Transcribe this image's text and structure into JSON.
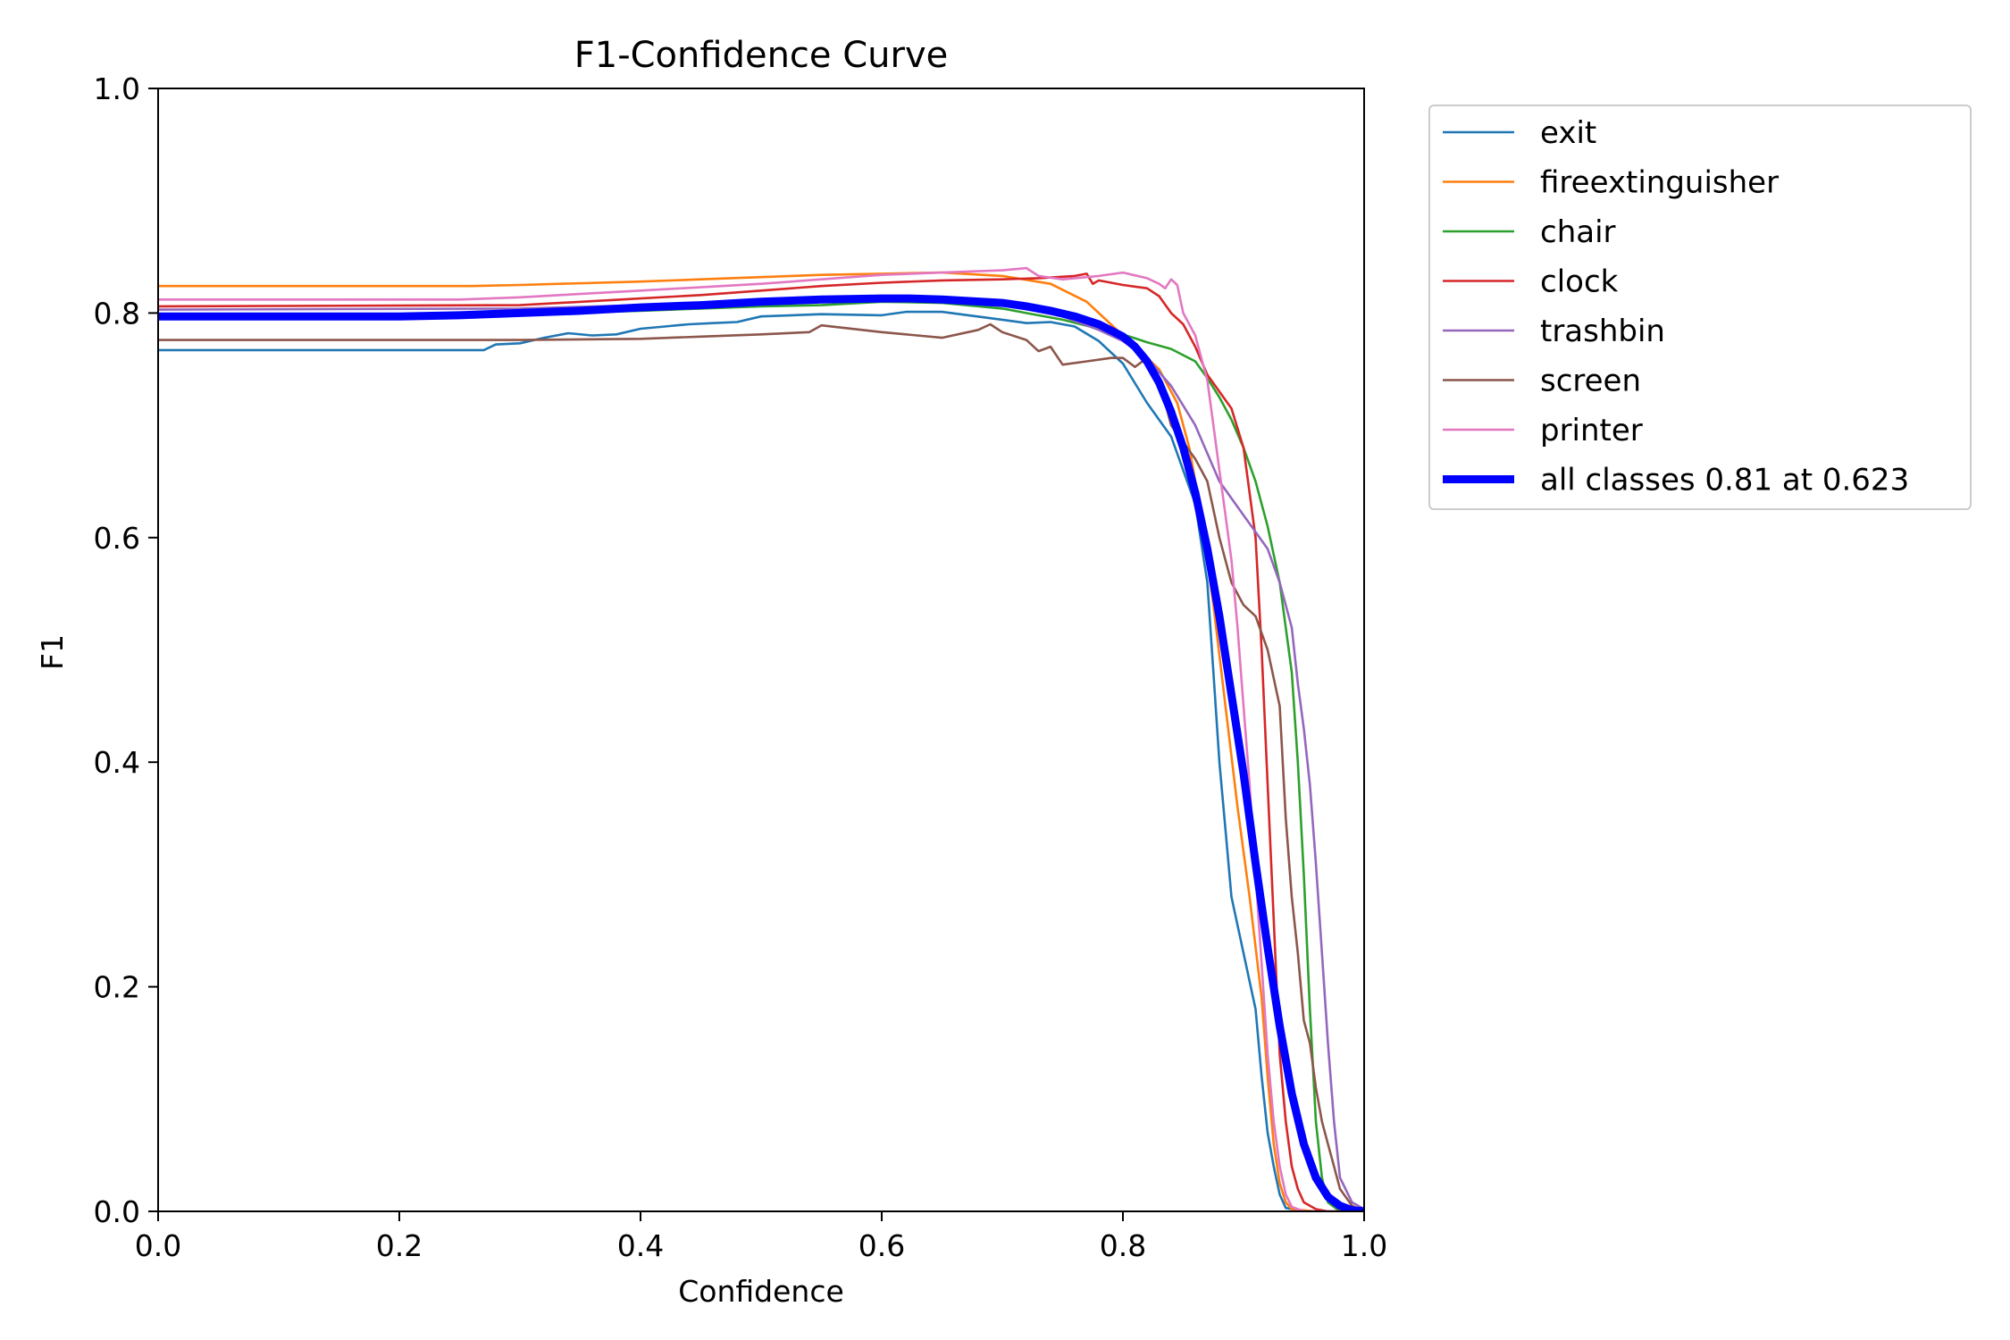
{
  "chart_data": {
    "type": "line",
    "title": "F1-Confidence Curve",
    "xlabel": "Confidence",
    "ylabel": "F1",
    "xlim": [
      0,
      1
    ],
    "ylim": [
      0,
      1
    ],
    "xticks": [
      "0.0",
      "0.2",
      "0.4",
      "0.6",
      "0.8",
      "1.0"
    ],
    "yticks": [
      "0.0",
      "0.2",
      "0.4",
      "0.6",
      "0.8",
      "1.0"
    ],
    "grid": false,
    "legend_position": "outside-top-right",
    "series": [
      {
        "name": "exit",
        "color": "#1f77b4",
        "width": "thin",
        "points": [
          [
            0,
            0.767
          ],
          [
            0.27,
            0.767
          ],
          [
            0.28,
            0.772
          ],
          [
            0.3,
            0.773
          ],
          [
            0.32,
            0.778
          ],
          [
            0.34,
            0.782
          ],
          [
            0.36,
            0.78
          ],
          [
            0.38,
            0.781
          ],
          [
            0.4,
            0.786
          ],
          [
            0.42,
            0.788
          ],
          [
            0.44,
            0.79
          ],
          [
            0.46,
            0.791
          ],
          [
            0.48,
            0.792
          ],
          [
            0.5,
            0.797
          ],
          [
            0.55,
            0.799
          ],
          [
            0.6,
            0.798
          ],
          [
            0.62,
            0.801
          ],
          [
            0.65,
            0.801
          ],
          [
            0.7,
            0.794
          ],
          [
            0.72,
            0.791
          ],
          [
            0.74,
            0.792
          ],
          [
            0.76,
            0.788
          ],
          [
            0.78,
            0.775
          ],
          [
            0.8,
            0.755
          ],
          [
            0.82,
            0.72
          ],
          [
            0.84,
            0.69
          ],
          [
            0.85,
            0.66
          ],
          [
            0.86,
            0.63
          ],
          [
            0.87,
            0.56
          ],
          [
            0.875,
            0.48
          ],
          [
            0.88,
            0.4
          ],
          [
            0.885,
            0.34
          ],
          [
            0.89,
            0.28
          ],
          [
            0.9,
            0.23
          ],
          [
            0.91,
            0.18
          ],
          [
            0.915,
            0.12
          ],
          [
            0.92,
            0.07
          ],
          [
            0.925,
            0.04
          ],
          [
            0.93,
            0.015
          ],
          [
            0.935,
            0.003
          ],
          [
            0.95,
            0
          ],
          [
            1.0,
            0
          ]
        ]
      },
      {
        "name": "fireextinguisher",
        "color": "#ff7f0e",
        "width": "thin",
        "points": [
          [
            0,
            0.824
          ],
          [
            0.26,
            0.824
          ],
          [
            0.3,
            0.825
          ],
          [
            0.4,
            0.828
          ],
          [
            0.45,
            0.83
          ],
          [
            0.5,
            0.832
          ],
          [
            0.55,
            0.834
          ],
          [
            0.6,
            0.835
          ],
          [
            0.65,
            0.836
          ],
          [
            0.7,
            0.833
          ],
          [
            0.74,
            0.826
          ],
          [
            0.77,
            0.81
          ],
          [
            0.79,
            0.79
          ],
          [
            0.81,
            0.77
          ],
          [
            0.83,
            0.75
          ],
          [
            0.845,
            0.72
          ],
          [
            0.855,
            0.68
          ],
          [
            0.865,
            0.62
          ],
          [
            0.875,
            0.54
          ],
          [
            0.885,
            0.45
          ],
          [
            0.895,
            0.36
          ],
          [
            0.905,
            0.28
          ],
          [
            0.915,
            0.19
          ],
          [
            0.92,
            0.12
          ],
          [
            0.925,
            0.06
          ],
          [
            0.93,
            0.025
          ],
          [
            0.935,
            0.008
          ],
          [
            0.94,
            0.002
          ],
          [
            0.96,
            0
          ],
          [
            1.0,
            0
          ]
        ]
      },
      {
        "name": "chair",
        "color": "#2ca02c",
        "width": "thin",
        "points": [
          [
            0,
            0.798
          ],
          [
            0.3,
            0.799
          ],
          [
            0.4,
            0.802
          ],
          [
            0.45,
            0.804
          ],
          [
            0.5,
            0.806
          ],
          [
            0.55,
            0.807
          ],
          [
            0.6,
            0.81
          ],
          [
            0.65,
            0.809
          ],
          [
            0.7,
            0.804
          ],
          [
            0.75,
            0.794
          ],
          [
            0.78,
            0.786
          ],
          [
            0.8,
            0.781
          ],
          [
            0.82,
            0.774
          ],
          [
            0.84,
            0.768
          ],
          [
            0.86,
            0.757
          ],
          [
            0.87,
            0.742
          ],
          [
            0.88,
            0.725
          ],
          [
            0.89,
            0.705
          ],
          [
            0.9,
            0.68
          ],
          [
            0.91,
            0.65
          ],
          [
            0.92,
            0.61
          ],
          [
            0.93,
            0.56
          ],
          [
            0.94,
            0.48
          ],
          [
            0.945,
            0.4
          ],
          [
            0.95,
            0.3
          ],
          [
            0.955,
            0.18
          ],
          [
            0.96,
            0.08
          ],
          [
            0.965,
            0.03
          ],
          [
            0.97,
            0.008
          ],
          [
            0.98,
            0
          ],
          [
            1.0,
            0
          ]
        ]
      },
      {
        "name": "clock",
        "color": "#d62728",
        "width": "thin",
        "points": [
          [
            0,
            0.806
          ],
          [
            0.3,
            0.807
          ],
          [
            0.4,
            0.813
          ],
          [
            0.45,
            0.816
          ],
          [
            0.5,
            0.82
          ],
          [
            0.55,
            0.824
          ],
          [
            0.6,
            0.827
          ],
          [
            0.65,
            0.829
          ],
          [
            0.7,
            0.83
          ],
          [
            0.73,
            0.831
          ],
          [
            0.76,
            0.833
          ],
          [
            0.77,
            0.835
          ],
          [
            0.775,
            0.826
          ],
          [
            0.78,
            0.829
          ],
          [
            0.8,
            0.825
          ],
          [
            0.82,
            0.822
          ],
          [
            0.83,
            0.815
          ],
          [
            0.84,
            0.8
          ],
          [
            0.85,
            0.79
          ],
          [
            0.86,
            0.77
          ],
          [
            0.87,
            0.745
          ],
          [
            0.88,
            0.73
          ],
          [
            0.89,
            0.715
          ],
          [
            0.9,
            0.68
          ],
          [
            0.91,
            0.6
          ],
          [
            0.915,
            0.5
          ],
          [
            0.92,
            0.38
          ],
          [
            0.925,
            0.26
          ],
          [
            0.93,
            0.14
          ],
          [
            0.935,
            0.08
          ],
          [
            0.94,
            0.04
          ],
          [
            0.945,
            0.02
          ],
          [
            0.95,
            0.008
          ],
          [
            0.96,
            0.002
          ],
          [
            0.97,
            0
          ],
          [
            1.0,
            0
          ]
        ]
      },
      {
        "name": "trashbin",
        "color": "#9467bd",
        "width": "thin",
        "points": [
          [
            0,
            0.803
          ],
          [
            0.3,
            0.804
          ],
          [
            0.4,
            0.807
          ],
          [
            0.5,
            0.809
          ],
          [
            0.6,
            0.811
          ],
          [
            0.65,
            0.812
          ],
          [
            0.7,
            0.808
          ],
          [
            0.75,
            0.797
          ],
          [
            0.78,
            0.785
          ],
          [
            0.8,
            0.775
          ],
          [
            0.82,
            0.76
          ],
          [
            0.84,
            0.735
          ],
          [
            0.86,
            0.7
          ],
          [
            0.88,
            0.65
          ],
          [
            0.9,
            0.62
          ],
          [
            0.92,
            0.59
          ],
          [
            0.93,
            0.56
          ],
          [
            0.94,
            0.52
          ],
          [
            0.945,
            0.47
          ],
          [
            0.95,
            0.43
          ],
          [
            0.955,
            0.38
          ],
          [
            0.96,
            0.31
          ],
          [
            0.965,
            0.23
          ],
          [
            0.97,
            0.15
          ],
          [
            0.975,
            0.08
          ],
          [
            0.98,
            0.03
          ],
          [
            0.99,
            0.008
          ],
          [
            1.0,
            0.002
          ]
        ]
      },
      {
        "name": "screen",
        "color": "#8c564b",
        "width": "thin",
        "points": [
          [
            0,
            0.776
          ],
          [
            0.3,
            0.776
          ],
          [
            0.4,
            0.777
          ],
          [
            0.45,
            0.779
          ],
          [
            0.5,
            0.781
          ],
          [
            0.54,
            0.783
          ],
          [
            0.55,
            0.789
          ],
          [
            0.6,
            0.783
          ],
          [
            0.65,
            0.778
          ],
          [
            0.68,
            0.785
          ],
          [
            0.69,
            0.79
          ],
          [
            0.7,
            0.783
          ],
          [
            0.72,
            0.776
          ],
          [
            0.73,
            0.766
          ],
          [
            0.74,
            0.77
          ],
          [
            0.75,
            0.754
          ],
          [
            0.77,
            0.757
          ],
          [
            0.79,
            0.76
          ],
          [
            0.8,
            0.76
          ],
          [
            0.81,
            0.752
          ],
          [
            0.82,
            0.76
          ],
          [
            0.83,
            0.74
          ],
          [
            0.84,
            0.7
          ],
          [
            0.85,
            0.685
          ],
          [
            0.86,
            0.67
          ],
          [
            0.87,
            0.65
          ],
          [
            0.88,
            0.6
          ],
          [
            0.89,
            0.56
          ],
          [
            0.9,
            0.54
          ],
          [
            0.91,
            0.53
          ],
          [
            0.92,
            0.5
          ],
          [
            0.93,
            0.45
          ],
          [
            0.935,
            0.35
          ],
          [
            0.94,
            0.28
          ],
          [
            0.945,
            0.23
          ],
          [
            0.95,
            0.17
          ],
          [
            0.955,
            0.15
          ],
          [
            0.96,
            0.11
          ],
          [
            0.965,
            0.08
          ],
          [
            0.97,
            0.06
          ],
          [
            0.975,
            0.04
          ],
          [
            0.98,
            0.02
          ],
          [
            0.99,
            0.005
          ],
          [
            1.0,
            0
          ]
        ]
      },
      {
        "name": "printer",
        "color": "#e377c2",
        "width": "thin",
        "points": [
          [
            0,
            0.812
          ],
          [
            0.25,
            0.812
          ],
          [
            0.3,
            0.814
          ],
          [
            0.4,
            0.82
          ],
          [
            0.5,
            0.826
          ],
          [
            0.55,
            0.83
          ],
          [
            0.6,
            0.834
          ],
          [
            0.65,
            0.836
          ],
          [
            0.7,
            0.838
          ],
          [
            0.72,
            0.84
          ],
          [
            0.73,
            0.833
          ],
          [
            0.75,
            0.83
          ],
          [
            0.78,
            0.833
          ],
          [
            0.8,
            0.836
          ],
          [
            0.82,
            0.831
          ],
          [
            0.83,
            0.826
          ],
          [
            0.835,
            0.822
          ],
          [
            0.84,
            0.83
          ],
          [
            0.845,
            0.825
          ],
          [
            0.85,
            0.8
          ],
          [
            0.86,
            0.78
          ],
          [
            0.87,
            0.74
          ],
          [
            0.875,
            0.7
          ],
          [
            0.88,
            0.66
          ],
          [
            0.885,
            0.62
          ],
          [
            0.89,
            0.58
          ],
          [
            0.895,
            0.52
          ],
          [
            0.9,
            0.45
          ],
          [
            0.905,
            0.38
          ],
          [
            0.91,
            0.3
          ],
          [
            0.915,
            0.22
          ],
          [
            0.92,
            0.14
          ],
          [
            0.925,
            0.08
          ],
          [
            0.93,
            0.04
          ],
          [
            0.935,
            0.015
          ],
          [
            0.94,
            0.004
          ],
          [
            0.95,
            0
          ],
          [
            1.0,
            0
          ]
        ]
      },
      {
        "name": "all classes 0.81 at 0.623",
        "color": "#0000ff",
        "width": "thick",
        "points": [
          [
            0,
            0.797
          ],
          [
            0.2,
            0.797
          ],
          [
            0.25,
            0.798
          ],
          [
            0.3,
            0.8
          ],
          [
            0.35,
            0.802
          ],
          [
            0.4,
            0.805
          ],
          [
            0.45,
            0.807
          ],
          [
            0.5,
            0.81
          ],
          [
            0.55,
            0.812
          ],
          [
            0.6,
            0.813
          ],
          [
            0.623,
            0.813
          ],
          [
            0.65,
            0.812
          ],
          [
            0.7,
            0.809
          ],
          [
            0.72,
            0.806
          ],
          [
            0.74,
            0.802
          ],
          [
            0.76,
            0.797
          ],
          [
            0.78,
            0.79
          ],
          [
            0.8,
            0.779
          ],
          [
            0.81,
            0.77
          ],
          [
            0.82,
            0.757
          ],
          [
            0.83,
            0.738
          ],
          [
            0.84,
            0.712
          ],
          [
            0.85,
            0.68
          ],
          [
            0.86,
            0.64
          ],
          [
            0.87,
            0.59
          ],
          [
            0.88,
            0.53
          ],
          [
            0.89,
            0.46
          ],
          [
            0.9,
            0.39
          ],
          [
            0.91,
            0.31
          ],
          [
            0.92,
            0.235
          ],
          [
            0.93,
            0.165
          ],
          [
            0.94,
            0.105
          ],
          [
            0.95,
            0.06
          ],
          [
            0.96,
            0.03
          ],
          [
            0.97,
            0.013
          ],
          [
            0.98,
            0.005
          ],
          [
            0.99,
            0.001
          ],
          [
            1.0,
            0
          ]
        ]
      }
    ]
  }
}
